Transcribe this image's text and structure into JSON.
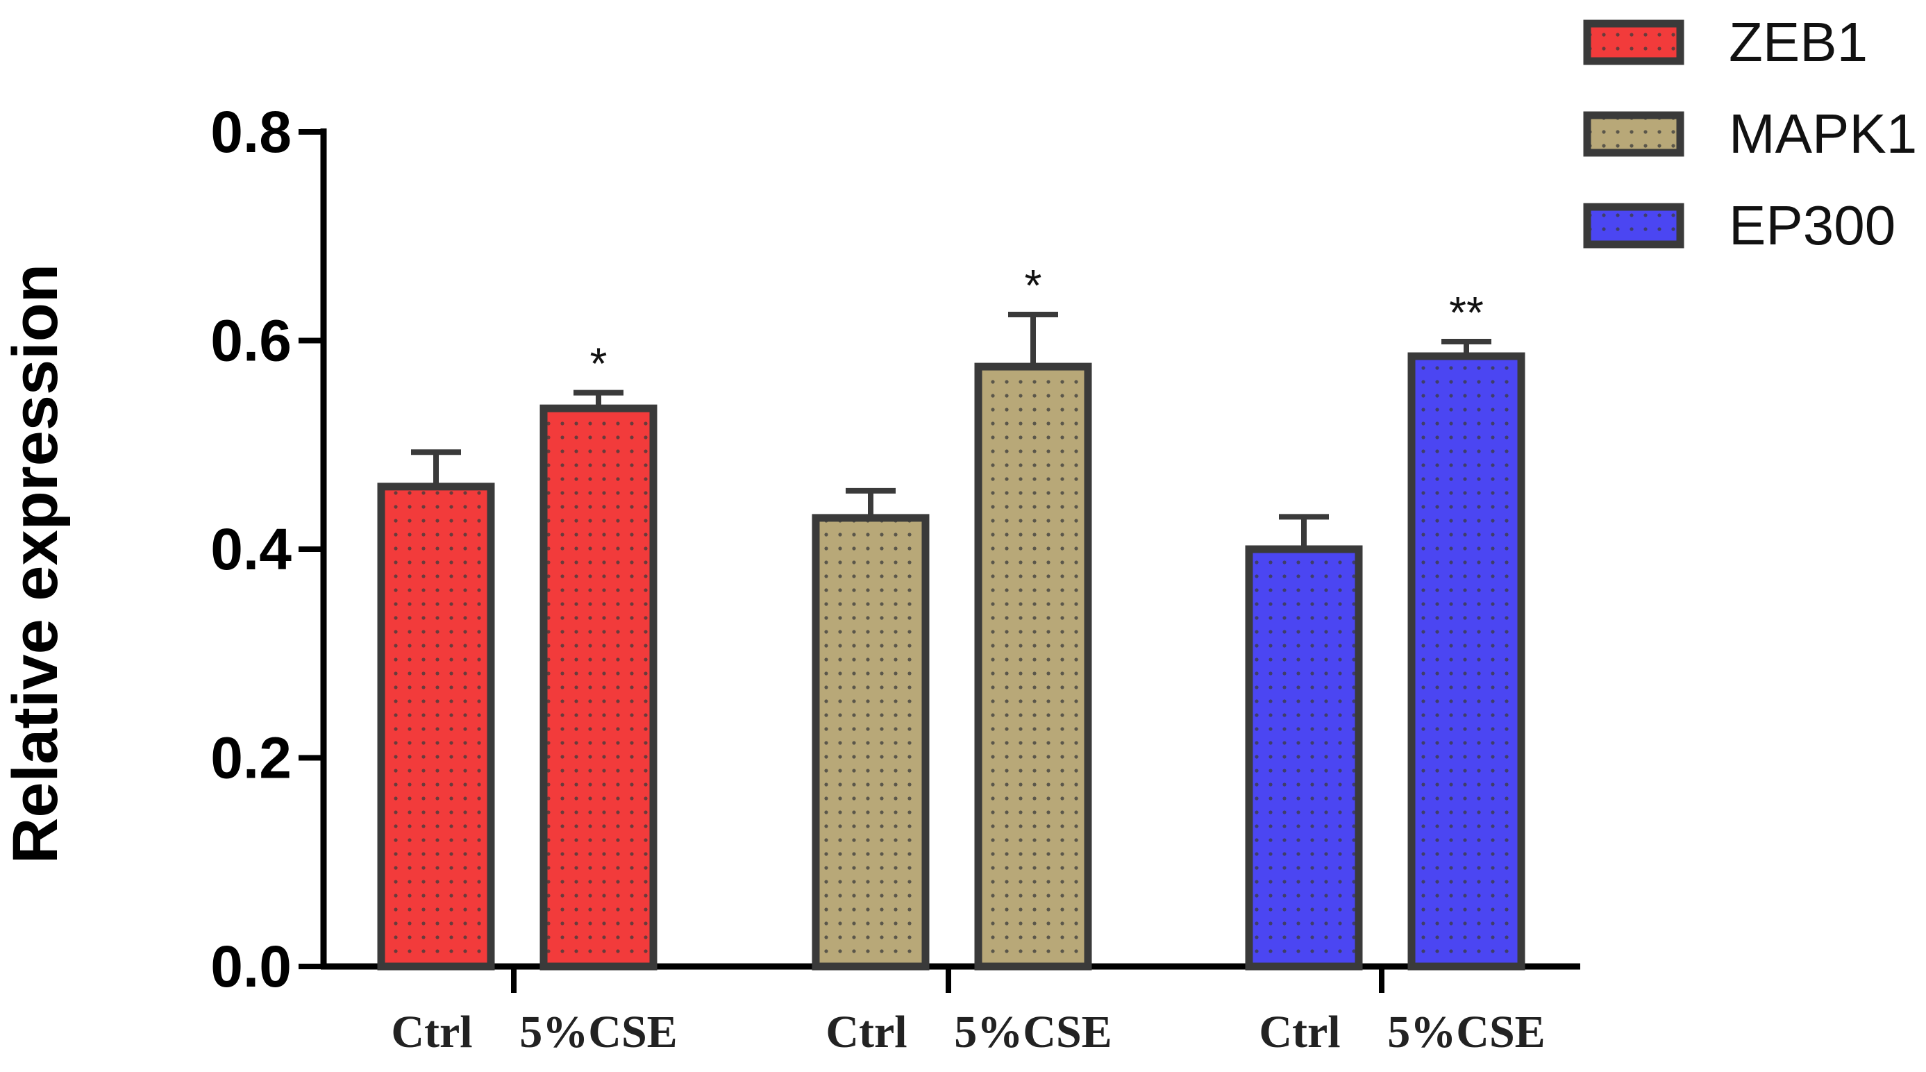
{
  "chart_data": {
    "type": "bar",
    "title": "",
    "xlabel": "",
    "ylabel": "Relative expression",
    "ylim": [
      0,
      0.8
    ],
    "yticks": [
      "0.0",
      "0.2",
      "0.4",
      "0.6",
      "0.8"
    ],
    "categories": [
      "Ctrl",
      "5%CSE"
    ],
    "series": [
      {
        "name": "ZEB1",
        "color": "#f23b3b",
        "values": [
          0.46,
          0.535
        ],
        "errors": [
          0.033,
          0.015
        ],
        "significance": [
          "",
          "*"
        ]
      },
      {
        "name": "MAPK1",
        "color": "#b8a878",
        "values": [
          0.43,
          0.575
        ],
        "errors": [
          0.026,
          0.05
        ],
        "significance": [
          "",
          "*"
        ]
      },
      {
        "name": "EP300",
        "color": "#4b46f2",
        "values": [
          0.4,
          0.585
        ],
        "errors": [
          0.031,
          0.014
        ],
        "significance": [
          "",
          "**"
        ]
      }
    ],
    "legend": "top-right",
    "grid": false,
    "pattern": "dotted"
  }
}
